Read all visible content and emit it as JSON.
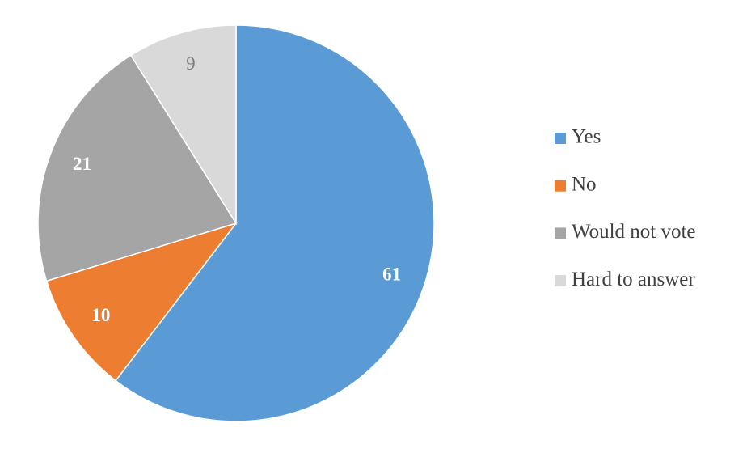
{
  "chart_data": {
    "type": "pie",
    "categories": [
      "Yes",
      "No",
      "Would not vote",
      "Hard to answer"
    ],
    "values": [
      61,
      10,
      21,
      9
    ],
    "colors": [
      "#5b9bd5",
      "#ed7d31",
      "#a5a5a5",
      "#d9d9d9"
    ],
    "legend": "right"
  }
}
